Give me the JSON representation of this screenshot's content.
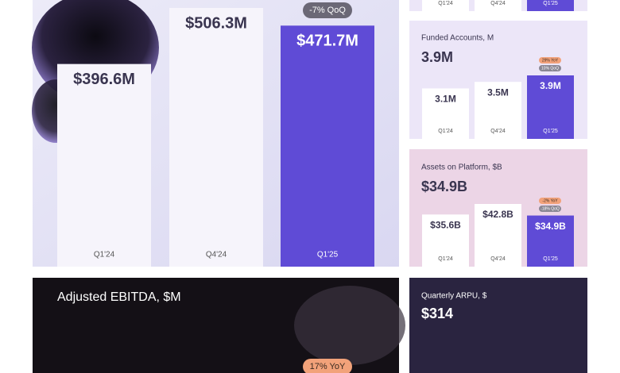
{
  "chart_data": [
    {
      "type": "bar",
      "categories": [
        "Q1'24",
        "Q4'24",
        "Q1'25"
      ]
    },
    {
      "type": "bar",
      "categories": [
        "Q1'24",
        "Q4'24",
        "Q1'25"
      ],
      "values": [
        396.6,
        506.3,
        471.7
      ],
      "value_labels": [
        "$396.6M",
        "$506.3M",
        "$471.7M"
      ],
      "annotations": [
        "-7% QoQ"
      ],
      "colors": [
        "#f6f4fb",
        "#f6f4fb",
        "#5f4bd6"
      ]
    },
    {
      "type": "bar",
      "title": "Funded Accounts, M",
      "headline": "3.9M",
      "categories": [
        "Q1'24",
        "Q4'24",
        "Q1'25"
      ],
      "values": [
        3.1,
        3.5,
        3.9
      ],
      "value_labels": [
        "3.1M",
        "3.5M",
        "3.9M"
      ],
      "annotations": [
        "29% YoY",
        "10% QoQ"
      ],
      "colors": [
        "#ffffff",
        "#ffffff",
        "#5f4bd6"
      ]
    },
    {
      "type": "bar",
      "title": "Assets on Platform, $B",
      "headline": "$34.9B",
      "categories": [
        "Q1'24",
        "Q4'24",
        "Q1'25"
      ],
      "values": [
        35.6,
        42.8,
        34.9
      ],
      "value_labels": [
        "$35.6B",
        "$42.8B",
        "$34.9B"
      ],
      "annotations": [
        "-2% YoY",
        "-18% QoQ"
      ],
      "colors": [
        "#ffffff",
        "#ffffff",
        "#5f4bd6"
      ]
    },
    {
      "type": "bar",
      "title": "Adjusted EBITDA, $M",
      "annotations": [
        "17% YoY"
      ]
    },
    {
      "type": "bar",
      "title": "Quarterly ARPU, $",
      "headline": "$314"
    }
  ]
}
